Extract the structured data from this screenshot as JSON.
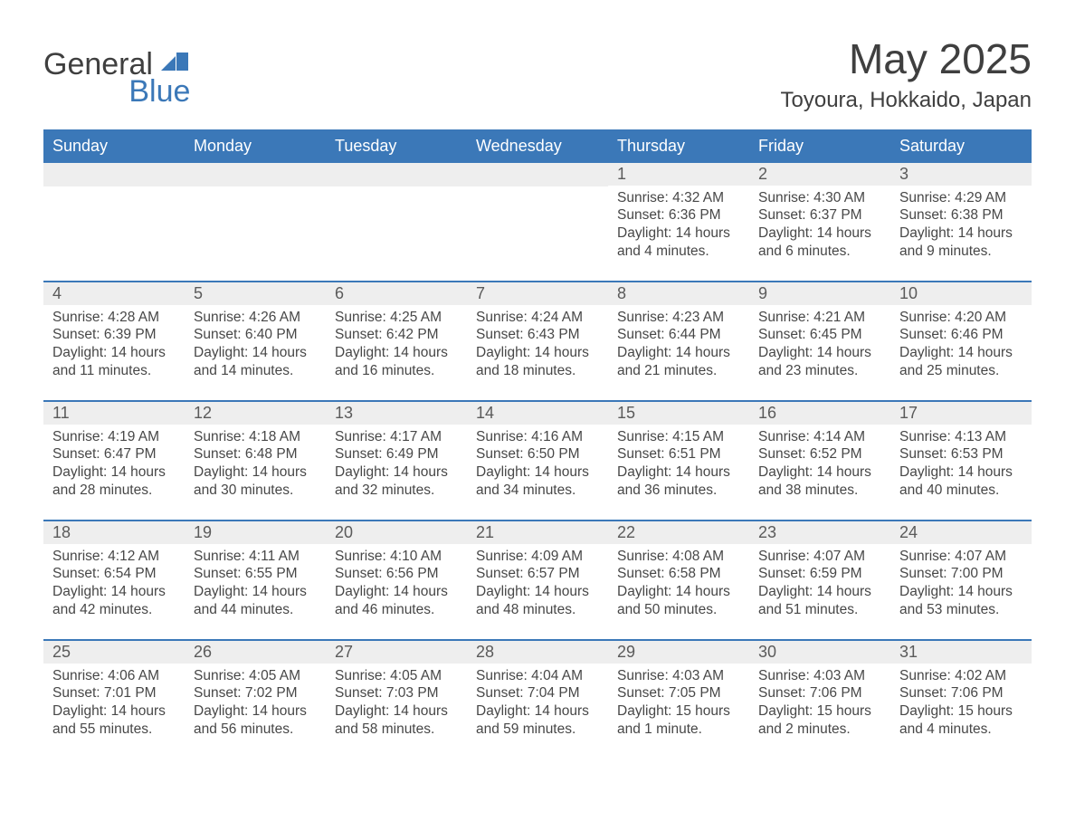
{
  "logo": {
    "word1": "General",
    "word2": "Blue"
  },
  "header": {
    "month": "May 2025",
    "location": "Toyoura, Hokkaido, Japan"
  },
  "styling": {
    "accent": "#3b78b8",
    "daynum_bg": "#eeeeee",
    "text_color": "#3f3f3f",
    "body_text_color": "#474747",
    "background": "#ffffff",
    "header_text_color": "#ffffff",
    "columns": 7,
    "font_family": "Segoe UI"
  },
  "day_labels": [
    "Sunday",
    "Monday",
    "Tuesday",
    "Wednesday",
    "Thursday",
    "Friday",
    "Saturday"
  ],
  "weeks": [
    [
      null,
      null,
      null,
      null,
      {
        "n": "1",
        "sunrise": "Sunrise: 4:32 AM",
        "sunset": "Sunset: 6:36 PM",
        "day1": "Daylight: 14 hours",
        "day2": "and 4 minutes."
      },
      {
        "n": "2",
        "sunrise": "Sunrise: 4:30 AM",
        "sunset": "Sunset: 6:37 PM",
        "day1": "Daylight: 14 hours",
        "day2": "and 6 minutes."
      },
      {
        "n": "3",
        "sunrise": "Sunrise: 4:29 AM",
        "sunset": "Sunset: 6:38 PM",
        "day1": "Daylight: 14 hours",
        "day2": "and 9 minutes."
      }
    ],
    [
      {
        "n": "4",
        "sunrise": "Sunrise: 4:28 AM",
        "sunset": "Sunset: 6:39 PM",
        "day1": "Daylight: 14 hours",
        "day2": "and 11 minutes."
      },
      {
        "n": "5",
        "sunrise": "Sunrise: 4:26 AM",
        "sunset": "Sunset: 6:40 PM",
        "day1": "Daylight: 14 hours",
        "day2": "and 14 minutes."
      },
      {
        "n": "6",
        "sunrise": "Sunrise: 4:25 AM",
        "sunset": "Sunset: 6:42 PM",
        "day1": "Daylight: 14 hours",
        "day2": "and 16 minutes."
      },
      {
        "n": "7",
        "sunrise": "Sunrise: 4:24 AM",
        "sunset": "Sunset: 6:43 PM",
        "day1": "Daylight: 14 hours",
        "day2": "and 18 minutes."
      },
      {
        "n": "8",
        "sunrise": "Sunrise: 4:23 AM",
        "sunset": "Sunset: 6:44 PM",
        "day1": "Daylight: 14 hours",
        "day2": "and 21 minutes."
      },
      {
        "n": "9",
        "sunrise": "Sunrise: 4:21 AM",
        "sunset": "Sunset: 6:45 PM",
        "day1": "Daylight: 14 hours",
        "day2": "and 23 minutes."
      },
      {
        "n": "10",
        "sunrise": "Sunrise: 4:20 AM",
        "sunset": "Sunset: 6:46 PM",
        "day1": "Daylight: 14 hours",
        "day2": "and 25 minutes."
      }
    ],
    [
      {
        "n": "11",
        "sunrise": "Sunrise: 4:19 AM",
        "sunset": "Sunset: 6:47 PM",
        "day1": "Daylight: 14 hours",
        "day2": "and 28 minutes."
      },
      {
        "n": "12",
        "sunrise": "Sunrise: 4:18 AM",
        "sunset": "Sunset: 6:48 PM",
        "day1": "Daylight: 14 hours",
        "day2": "and 30 minutes."
      },
      {
        "n": "13",
        "sunrise": "Sunrise: 4:17 AM",
        "sunset": "Sunset: 6:49 PM",
        "day1": "Daylight: 14 hours",
        "day2": "and 32 minutes."
      },
      {
        "n": "14",
        "sunrise": "Sunrise: 4:16 AM",
        "sunset": "Sunset: 6:50 PM",
        "day1": "Daylight: 14 hours",
        "day2": "and 34 minutes."
      },
      {
        "n": "15",
        "sunrise": "Sunrise: 4:15 AM",
        "sunset": "Sunset: 6:51 PM",
        "day1": "Daylight: 14 hours",
        "day2": "and 36 minutes."
      },
      {
        "n": "16",
        "sunrise": "Sunrise: 4:14 AM",
        "sunset": "Sunset: 6:52 PM",
        "day1": "Daylight: 14 hours",
        "day2": "and 38 minutes."
      },
      {
        "n": "17",
        "sunrise": "Sunrise: 4:13 AM",
        "sunset": "Sunset: 6:53 PM",
        "day1": "Daylight: 14 hours",
        "day2": "and 40 minutes."
      }
    ],
    [
      {
        "n": "18",
        "sunrise": "Sunrise: 4:12 AM",
        "sunset": "Sunset: 6:54 PM",
        "day1": "Daylight: 14 hours",
        "day2": "and 42 minutes."
      },
      {
        "n": "19",
        "sunrise": "Sunrise: 4:11 AM",
        "sunset": "Sunset: 6:55 PM",
        "day1": "Daylight: 14 hours",
        "day2": "and 44 minutes."
      },
      {
        "n": "20",
        "sunrise": "Sunrise: 4:10 AM",
        "sunset": "Sunset: 6:56 PM",
        "day1": "Daylight: 14 hours",
        "day2": "and 46 minutes."
      },
      {
        "n": "21",
        "sunrise": "Sunrise: 4:09 AM",
        "sunset": "Sunset: 6:57 PM",
        "day1": "Daylight: 14 hours",
        "day2": "and 48 minutes."
      },
      {
        "n": "22",
        "sunrise": "Sunrise: 4:08 AM",
        "sunset": "Sunset: 6:58 PM",
        "day1": "Daylight: 14 hours",
        "day2": "and 50 minutes."
      },
      {
        "n": "23",
        "sunrise": "Sunrise: 4:07 AM",
        "sunset": "Sunset: 6:59 PM",
        "day1": "Daylight: 14 hours",
        "day2": "and 51 minutes."
      },
      {
        "n": "24",
        "sunrise": "Sunrise: 4:07 AM",
        "sunset": "Sunset: 7:00 PM",
        "day1": "Daylight: 14 hours",
        "day2": "and 53 minutes."
      }
    ],
    [
      {
        "n": "25",
        "sunrise": "Sunrise: 4:06 AM",
        "sunset": "Sunset: 7:01 PM",
        "day1": "Daylight: 14 hours",
        "day2": "and 55 minutes."
      },
      {
        "n": "26",
        "sunrise": "Sunrise: 4:05 AM",
        "sunset": "Sunset: 7:02 PM",
        "day1": "Daylight: 14 hours",
        "day2": "and 56 minutes."
      },
      {
        "n": "27",
        "sunrise": "Sunrise: 4:05 AM",
        "sunset": "Sunset: 7:03 PM",
        "day1": "Daylight: 14 hours",
        "day2": "and 58 minutes."
      },
      {
        "n": "28",
        "sunrise": "Sunrise: 4:04 AM",
        "sunset": "Sunset: 7:04 PM",
        "day1": "Daylight: 14 hours",
        "day2": "and 59 minutes."
      },
      {
        "n": "29",
        "sunrise": "Sunrise: 4:03 AM",
        "sunset": "Sunset: 7:05 PM",
        "day1": "Daylight: 15 hours",
        "day2": "and 1 minute."
      },
      {
        "n": "30",
        "sunrise": "Sunrise: 4:03 AM",
        "sunset": "Sunset: 7:06 PM",
        "day1": "Daylight: 15 hours",
        "day2": "and 2 minutes."
      },
      {
        "n": "31",
        "sunrise": "Sunrise: 4:02 AM",
        "sunset": "Sunset: 7:06 PM",
        "day1": "Daylight: 15 hours",
        "day2": "and 4 minutes."
      }
    ]
  ]
}
